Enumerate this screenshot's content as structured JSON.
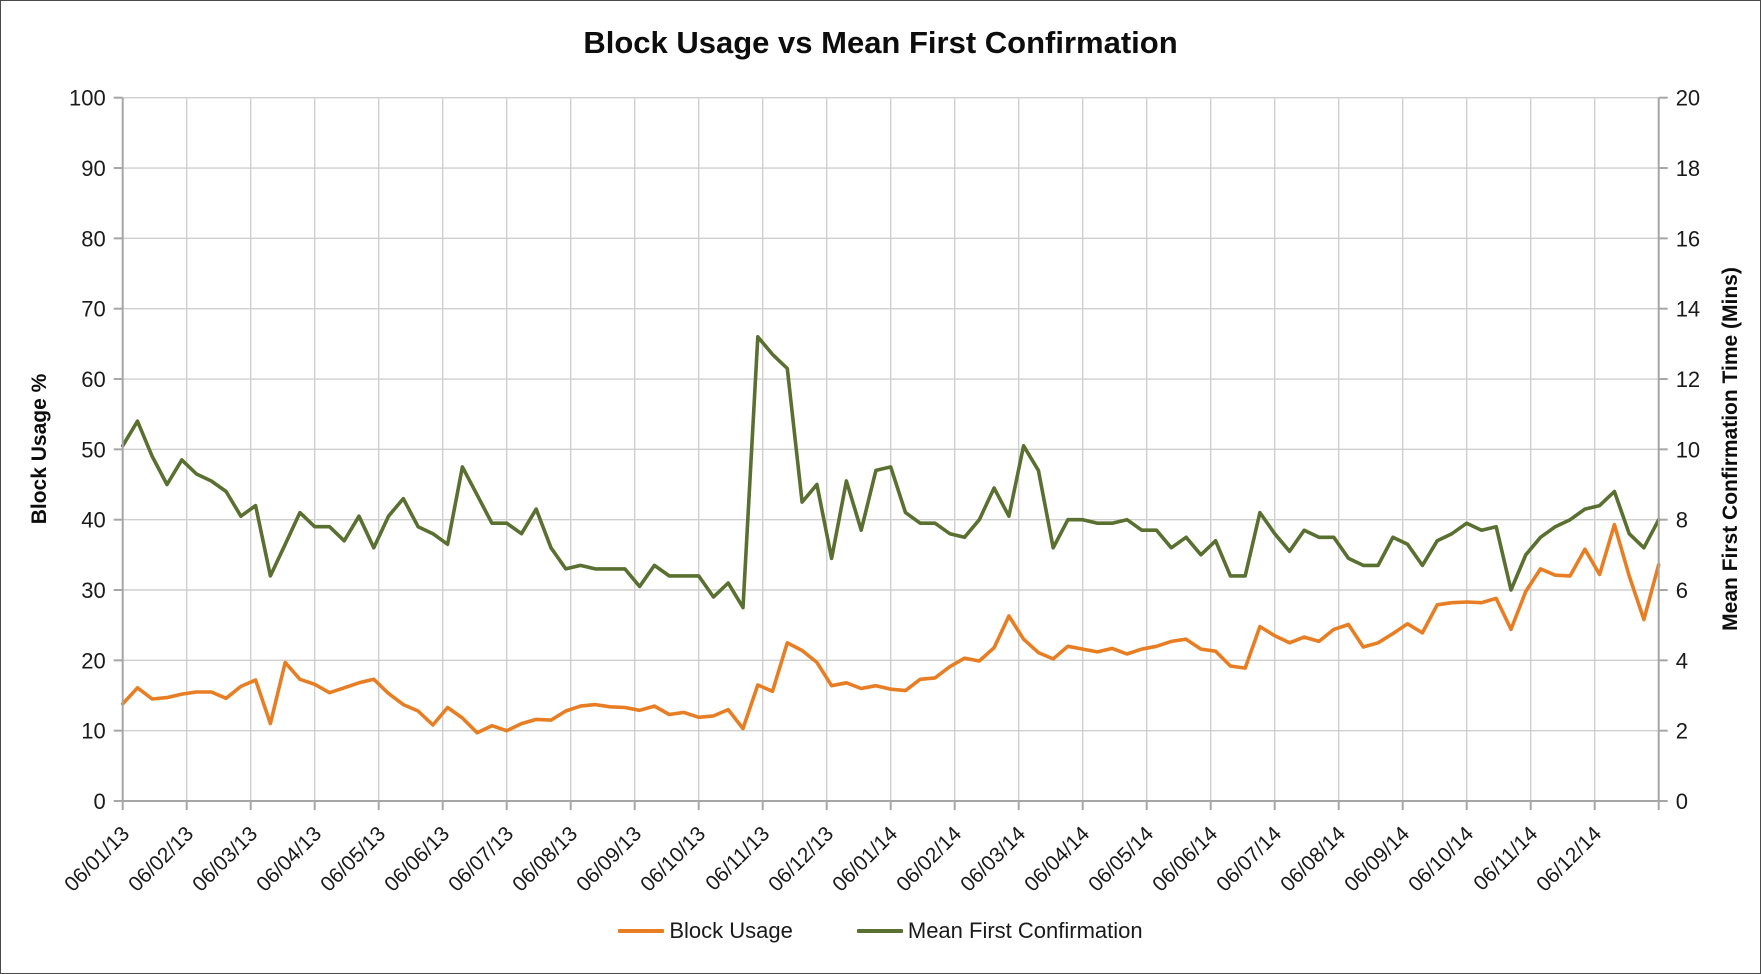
{
  "window": {
    "background_color": "#ffffff",
    "border_color": "#4a4a4a"
  },
  "chart_data": {
    "type": "line",
    "title": "Block Usage vs Mean First Confirmation",
    "grid": true,
    "legend_position": "bottom",
    "left_axis": {
      "label": "Block Usage %",
      "min": 0,
      "max": 100,
      "tick_step": 10,
      "tick_labels": [
        "0",
        "10",
        "20",
        "30",
        "40",
        "50",
        "60",
        "70",
        "80",
        "90",
        "100"
      ]
    },
    "right_axis": {
      "label": "Mean First Confirmation Time (Mins)",
      "min": 0,
      "max": 20,
      "tick_step": 2,
      "tick_labels": [
        "0",
        "2",
        "4",
        "6",
        "8",
        "10",
        "12",
        "14",
        "16",
        "18",
        "20"
      ]
    },
    "x_tick_labels": [
      "06/01/13",
      "06/02/13",
      "06/03/13",
      "06/04/13",
      "06/05/13",
      "06/06/13",
      "06/07/13",
      "06/08/13",
      "06/09/13",
      "06/10/13",
      "06/11/13",
      "06/12/13",
      "06/01/14",
      "06/02/14",
      "06/03/14",
      "06/04/14",
      "06/05/14",
      "06/06/14",
      "06/07/14",
      "06/08/14",
      "06/09/14",
      "06/10/14",
      "06/11/14",
      "06/12/14"
    ],
    "colors": {
      "gridline": "#cfcfcf",
      "axis_line": "#a6a6a6",
      "tick_text": "#1a1a1a"
    },
    "series": [
      {
        "name": "Block Usage",
        "axis": "left",
        "color": "#E87E23",
        "values": [
          13.8,
          16.1,
          14.5,
          14.7,
          15.2,
          15.5,
          15.5,
          14.6,
          16.3,
          17.2,
          11.0,
          19.7,
          17.3,
          16.6,
          15.4,
          16.1,
          16.8,
          17.3,
          15.3,
          13.7,
          12.8,
          10.8,
          13.3,
          11.8,
          9.7,
          10.7,
          10.0,
          11.0,
          11.6,
          11.5,
          12.8,
          13.5,
          13.7,
          13.4,
          13.3,
          12.9,
          13.5,
          12.3,
          12.6,
          11.9,
          12.1,
          13.0,
          10.3,
          16.5,
          15.6,
          22.5,
          21.4,
          19.7,
          16.4,
          16.8,
          16.0,
          16.4,
          15.9,
          15.7,
          17.3,
          17.5,
          19.1,
          20.3,
          19.9,
          21.8,
          26.3,
          23.0,
          21.1,
          20.2,
          22.0,
          21.6,
          21.2,
          21.7,
          20.9,
          21.6,
          22.0,
          22.7,
          23.0,
          21.6,
          21.3,
          19.2,
          18.9,
          24.8,
          23.5,
          22.5,
          23.3,
          22.7,
          24.4,
          25.1,
          21.9,
          22.5,
          23.8,
          25.2,
          23.9,
          27.9,
          28.2,
          28.3,
          28.2,
          28.8,
          24.4,
          29.8,
          33.0,
          32.1,
          32.0,
          35.8,
          32.2,
          39.3,
          32.0,
          25.8,
          33.6
        ]
      },
      {
        "name": "Mean First Confirmation",
        "axis": "right",
        "color": "#5A7030",
        "values": [
          10.1,
          10.8,
          9.8,
          9.0,
          9.7,
          9.3,
          9.1,
          8.8,
          8.1,
          8.4,
          6.4,
          7.3,
          8.2,
          7.8,
          7.8,
          7.4,
          8.1,
          7.2,
          8.1,
          8.6,
          7.8,
          7.6,
          7.3,
          9.5,
          8.7,
          7.9,
          7.9,
          7.6,
          8.3,
          7.2,
          6.6,
          6.7,
          6.6,
          6.6,
          6.6,
          6.1,
          6.7,
          6.4,
          6.4,
          6.4,
          5.8,
          6.2,
          5.5,
          13.2,
          12.7,
          12.3,
          8.5,
          9.0,
          6.9,
          9.1,
          7.7,
          9.4,
          9.5,
          8.2,
          7.9,
          7.9,
          7.6,
          7.5,
          8.0,
          8.9,
          8.1,
          10.1,
          9.4,
          7.2,
          8.0,
          8.0,
          7.9,
          7.9,
          8.0,
          7.7,
          7.7,
          7.2,
          7.5,
          7.0,
          7.4,
          6.4,
          6.4,
          8.2,
          7.6,
          7.1,
          7.7,
          7.5,
          7.5,
          6.9,
          6.7,
          6.7,
          7.5,
          7.3,
          6.7,
          7.4,
          7.6,
          7.9,
          7.7,
          7.8,
          6.0,
          7.0,
          7.5,
          7.8,
          8.0,
          8.3,
          8.4,
          8.8,
          7.6,
          7.2,
          8.0
        ]
      }
    ]
  }
}
